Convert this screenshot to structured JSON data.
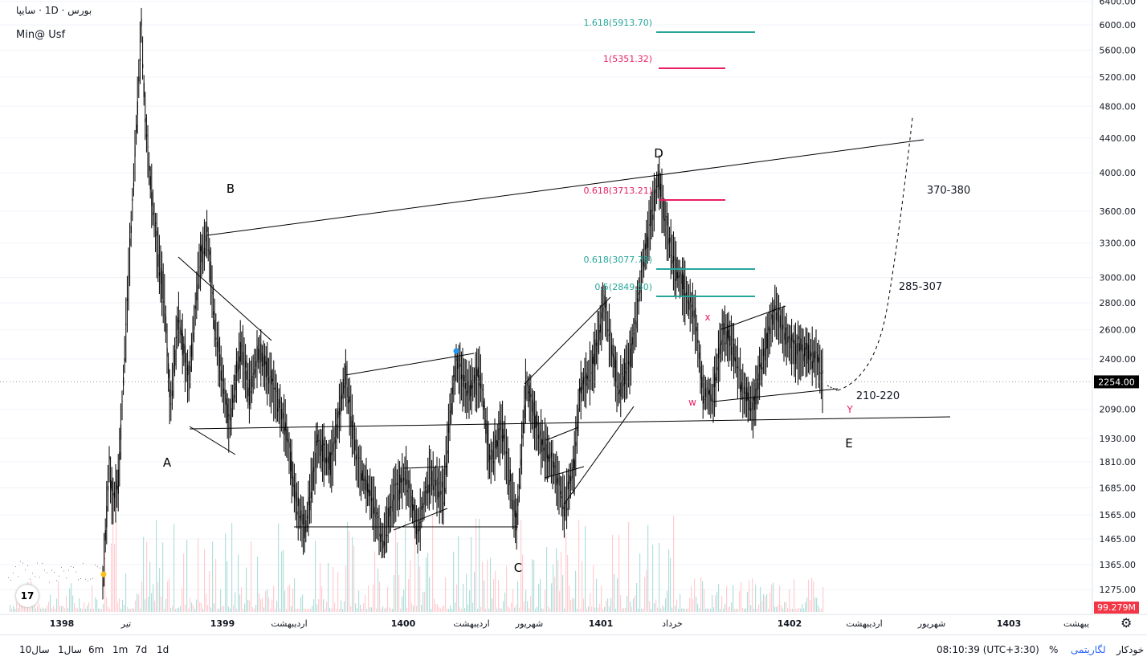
{
  "legend": {
    "symbol": "سایپا",
    "interval": "1D",
    "exchange": "بورس",
    "sep": "·",
    "author": "Min@ Usf"
  },
  "colors": {
    "teal": "#26a69a",
    "pink": "#e91e63",
    "red": "#ef5350",
    "black": "#000000",
    "grid": "#f0f3fa",
    "axis": "#131722",
    "price_badge": "#000000",
    "vol_badge": "#f23645"
  },
  "chart_data": {
    "type": "candlestick",
    "y_scale": "log",
    "y_ticks": [
      "6400.00",
      "6000.00",
      "5600.00",
      "5200.00",
      "4800.00",
      "4400.00",
      "4000.00",
      "3600.00",
      "3300.00",
      "3000.00",
      "2800.00",
      "2600.00",
      "2400.00",
      "2090.00",
      "1930.00",
      "1810.00",
      "1685.00",
      "1565.00",
      "1465.00",
      "1365.00",
      "1275.00"
    ],
    "last_price": "2254.00",
    "volume_label": "99.279M",
    "x_ticks": [
      "1398",
      "تیر",
      "1399",
      "اردیبهشت",
      "1400",
      "اردیبهشت",
      "شهریور",
      "1401",
      "خرداد",
      "1402",
      "اردیبهشت",
      "شهریور",
      "1403",
      "یبهشت"
    ],
    "wave_labels": [
      "A",
      "B",
      "C",
      "D",
      "E",
      "W",
      "X",
      "Y"
    ],
    "fib_levels": [
      {
        "label": "1.618(5913.70)",
        "price": 5913.7
      },
      {
        "label": "1(5351.32)",
        "price": 5351.32
      },
      {
        "label": "0.618(3713.21)",
        "price": 3713.21
      },
      {
        "label": "0.618(3077.78)",
        "price": 3077.78
      },
      {
        "label": "0.5(2849.50)",
        "price": 2849.5
      }
    ],
    "targets": [
      "370-380",
      "285-307",
      "210-220"
    ]
  },
  "bottom": {
    "ranges": [
      "10سال",
      "1سال",
      "6m",
      "1m",
      "7d",
      "1d"
    ],
    "time": "08:10:39 (UTC+3:30)",
    "percent": "%",
    "log": "لگاریتمی",
    "auto": "خودکار"
  }
}
